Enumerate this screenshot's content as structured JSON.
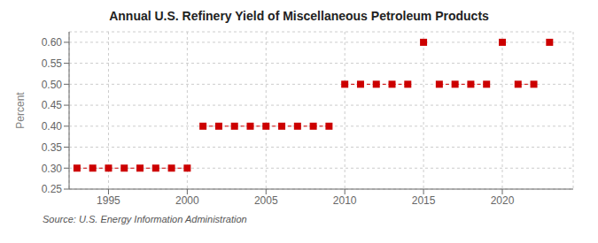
{
  "chart_data": {
    "type": "scatter",
    "title": "Annual U.S. Refinery Yield of Miscellaneous Petroleum Products",
    "ylabel": "Percent",
    "annotation": "Source: U.S. Energy Information Administration",
    "color": "#cc0000",
    "marker": "square",
    "line_style": "dashed",
    "grid": true,
    "xlim": [
      1992.5,
      2024.5
    ],
    "ylim": [
      0.25,
      0.625
    ],
    "xticks": [
      1995,
      2000,
      2005,
      2010,
      2015,
      2020
    ],
    "yticks": [
      0.25,
      {
        "value": 0.3,
        "label": "0.30"
      },
      0.35,
      {
        "value": 0.4,
        "label": "0.40"
      },
      0.45,
      {
        "value": 0.5,
        "label": "0.50"
      },
      0.55,
      {
        "value": 0.6,
        "label": "0.60"
      }
    ],
    "x": [
      1993,
      1994,
      1995,
      1996,
      1997,
      1998,
      1999,
      2000,
      2001,
      2002,
      2003,
      2004,
      2005,
      2006,
      2007,
      2008,
      2009,
      2010,
      2011,
      2012,
      2013,
      2014,
      2015,
      2016,
      2017,
      2018,
      2019,
      2020,
      2021,
      2022,
      2023
    ],
    "values": [
      0.3,
      0.3,
      0.3,
      0.3,
      0.3,
      0.3,
      0.3,
      0.3,
      0.4,
      0.4,
      0.4,
      0.4,
      0.4,
      0.4,
      0.4,
      0.4,
      0.4,
      0.5,
      0.5,
      0.5,
      0.5,
      0.5,
      0.6,
      0.5,
      0.5,
      0.5,
      0.5,
      0.6,
      0.5,
      0.5,
      0.6
    ]
  }
}
